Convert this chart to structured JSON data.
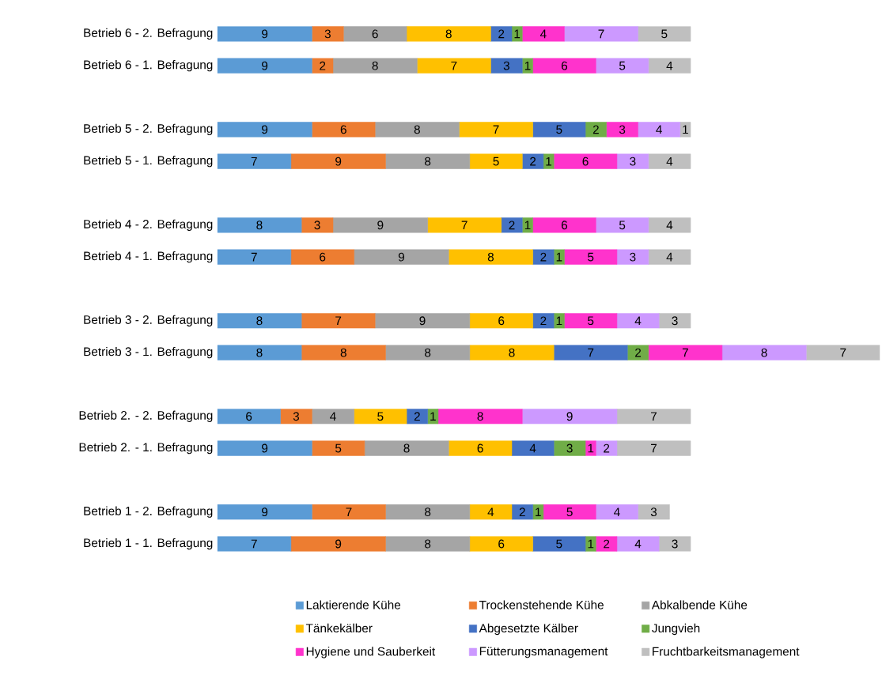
{
  "chart_data": {
    "type": "bar",
    "orientation": "horizontal",
    "stacked": true,
    "legend": "bottom",
    "data_labels": true,
    "categories": [
      "Betrieb 6 - 2. Befragung",
      "Betrieb 6 - 1. Befragung",
      null,
      "Betrieb 5 - 2. Befragung",
      "Betrieb 5 - 1. Befragung",
      null,
      "Betrieb 4 - 2. Befragung",
      "Betrieb 4 - 1. Befragung",
      null,
      "Betrieb 3 - 2. Befragung",
      "Betrieb 3 - 1. Befragung",
      null,
      "Betrieb 2. - 2. Befragung",
      "Betrieb 2. - 1. Befragung",
      null,
      "Betrieb 1 - 2. Befragung",
      "Betrieb 1 - 1. Befragung"
    ],
    "series": [
      {
        "name": "Laktierende Kühe",
        "color": "#5b9bd5",
        "values": [
          9,
          9,
          null,
          9,
          7,
          null,
          8,
          7,
          null,
          8,
          8,
          null,
          6,
          9,
          null,
          9,
          7
        ]
      },
      {
        "name": "Trockenstehende Kühe",
        "color": "#ed7d31",
        "values": [
          3,
          2,
          null,
          6,
          9,
          null,
          3,
          6,
          null,
          7,
          8,
          null,
          3,
          5,
          null,
          7,
          9
        ]
      },
      {
        "name": "Abkalbende Kühe",
        "color": "#a5a5a5",
        "values": [
          6,
          8,
          null,
          8,
          8,
          null,
          9,
          9,
          null,
          9,
          8,
          null,
          4,
          8,
          null,
          8,
          8
        ]
      },
      {
        "name": "Tänkekälber",
        "color": "#ffc000",
        "values": [
          8,
          7,
          null,
          7,
          5,
          null,
          7,
          8,
          null,
          6,
          8,
          null,
          5,
          6,
          null,
          4,
          6
        ]
      },
      {
        "name": "Abgesetzte Kälber",
        "color": "#4472c4",
        "values": [
          2,
          3,
          null,
          5,
          2,
          null,
          2,
          2,
          null,
          2,
          7,
          null,
          2,
          4,
          null,
          2,
          5
        ]
      },
      {
        "name": "Jungvieh",
        "color": "#70ad47",
        "values": [
          1,
          1,
          null,
          2,
          1,
          null,
          1,
          1,
          null,
          1,
          2,
          null,
          1,
          3,
          null,
          1,
          1
        ]
      },
      {
        "name": "Hygiene und Sauberkeit",
        "color": "#ff33cc",
        "values": [
          4,
          6,
          null,
          3,
          6,
          null,
          6,
          5,
          null,
          5,
          7,
          null,
          8,
          1,
          null,
          5,
          2
        ]
      },
      {
        "name": "Fütterungsmanagement",
        "color": "#cc99ff",
        "values": [
          7,
          5,
          null,
          4,
          3,
          null,
          5,
          3,
          null,
          4,
          8,
          null,
          9,
          2,
          null,
          4,
          4
        ]
      },
      {
        "name": "Fruchtbarkeitsmanagement",
        "color": "#bfbfbf",
        "values": [
          5,
          4,
          null,
          1,
          4,
          null,
          4,
          4,
          null,
          3,
          7,
          null,
          7,
          7,
          null,
          3,
          3
        ]
      }
    ]
  }
}
